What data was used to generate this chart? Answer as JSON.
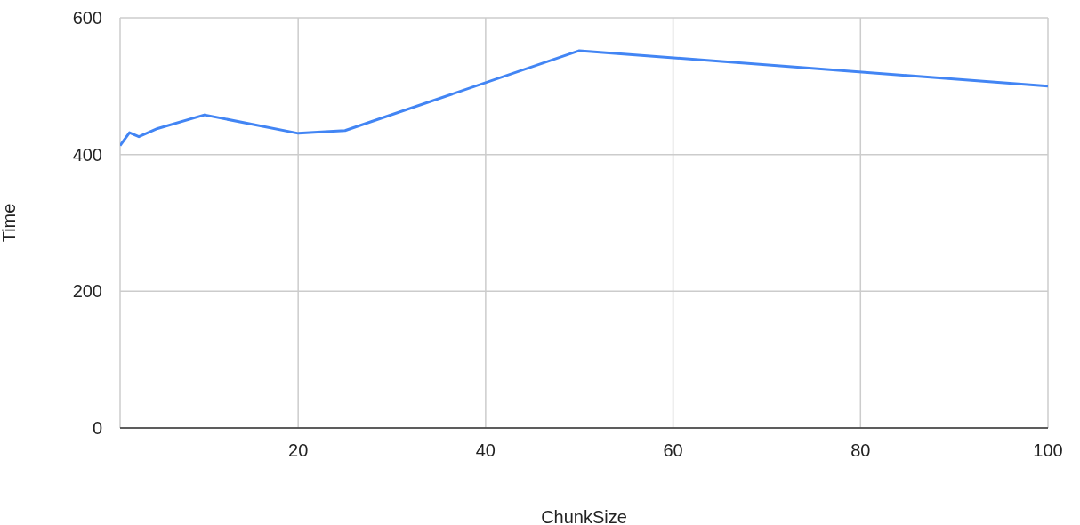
{
  "chart_data": {
    "type": "line",
    "xlabel": "ChunkSize",
    "ylabel": "Time",
    "x": [
      1,
      2,
      3,
      5,
      10,
      20,
      25,
      50,
      100
    ],
    "series": [
      {
        "color": "#4285f4",
        "values": [
          413,
          432,
          426,
          438,
          458,
          431,
          435,
          552,
          500
        ]
      }
    ],
    "xlim": [
      1,
      100
    ],
    "xticks": [
      20,
      40,
      60,
      80,
      100
    ],
    "ylim": [
      0,
      600
    ],
    "yticks": [
      0,
      200,
      400,
      600
    ],
    "grid": true,
    "marker": "none",
    "legend": false
  }
}
